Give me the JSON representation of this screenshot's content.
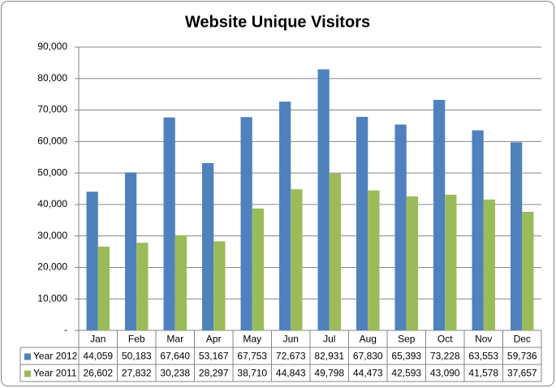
{
  "chart_data": {
    "type": "bar",
    "title": "Website Unique Visitors",
    "categories": [
      "Jan",
      "Feb",
      "Mar",
      "Apr",
      "May",
      "Jun",
      "Jul",
      "Aug",
      "Sep",
      "Oct",
      "Nov",
      "Dec"
    ],
    "series": [
      {
        "name": "Year 2012",
        "color": "#4f81bd",
        "values": [
          44059,
          50183,
          67640,
          53167,
          67753,
          72673,
          82931,
          67830,
          65393,
          73228,
          63553,
          59736
        ],
        "value_labels": [
          "44,059",
          "50,183",
          "67,640",
          "53,167",
          "67,753",
          "72,673",
          "82,931",
          "67,830",
          "65,393",
          "73,228",
          "63,553",
          "59,736"
        ]
      },
      {
        "name": "Year 2011",
        "color": "#9bbb59",
        "values": [
          26602,
          27832,
          30238,
          28297,
          38710,
          44843,
          49798,
          44473,
          42593,
          43090,
          41578,
          37657
        ],
        "value_labels": [
          "26,602",
          "27,832",
          "30,238",
          "28,297",
          "38,710",
          "44,843",
          "49,798",
          "44,473",
          "42,593",
          "43,090",
          "41,578",
          "37,657"
        ]
      }
    ],
    "ylim": [
      0,
      90000
    ],
    "yticks": [
      {
        "value": 0,
        "label": "-"
      },
      {
        "value": 10000,
        "label": "10,000"
      },
      {
        "value": 20000,
        "label": "20,000"
      },
      {
        "value": 30000,
        "label": "30,000"
      },
      {
        "value": 40000,
        "label": "40,000"
      },
      {
        "value": 50000,
        "label": "50,000"
      },
      {
        "value": 60000,
        "label": "60,000"
      },
      {
        "value": 70000,
        "label": "70,000"
      },
      {
        "value": 80000,
        "label": "80,000"
      },
      {
        "value": 90000,
        "label": "90,000"
      }
    ],
    "grid": true
  }
}
